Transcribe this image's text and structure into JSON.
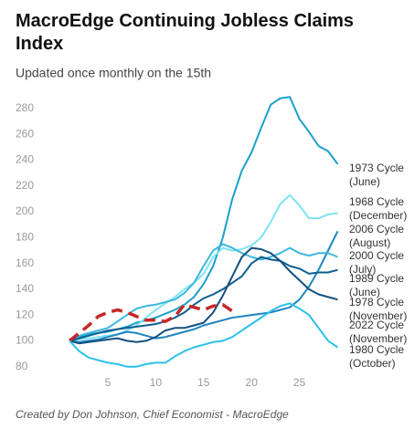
{
  "chart_data": {
    "type": "line",
    "title": "MacroEdge Continuing Jobless Claims Index",
    "subtitle": "Updated once monthly on the 15th",
    "footer": "Created by Don Johnson, Chief Economist - MacroEdge",
    "x": [
      1,
      2,
      3,
      4,
      5,
      6,
      7,
      8,
      9,
      10,
      11,
      12,
      13,
      14,
      15,
      16,
      17,
      18,
      19,
      20,
      21,
      22,
      23,
      24,
      25,
      26,
      27,
      28,
      29
    ],
    "xlim": [
      0,
      30
    ],
    "xticks": [
      5,
      10,
      15,
      20,
      25
    ],
    "ylim": [
      72,
      292
    ],
    "yticks": [
      80,
      100,
      120,
      140,
      160,
      180,
      200,
      220,
      240,
      260,
      280
    ],
    "grid": false,
    "series": [
      {
        "name": "1973 Cycle (June)",
        "color": "#1aa0cc",
        "values": [
          100,
          103,
          105,
          106,
          107,
          109,
          111,
          114,
          116,
          118,
          121,
          124,
          128,
          134,
          144,
          158,
          180,
          210,
          232,
          246,
          265,
          283,
          288,
          289,
          272,
          262,
          251,
          247,
          237
        ]
      },
      {
        "name": "1968 Cycle (December)",
        "color": "#7fe3f2",
        "values": [
          100,
          101,
          102,
          103,
          104,
          105,
          108,
          112,
          118,
          124,
          129,
          134,
          140,
          145,
          152,
          165,
          172,
          170,
          171,
          174,
          180,
          192,
          206,
          213,
          205,
          195,
          195,
          198,
          199
        ]
      },
      {
        "name": "2006 Cycle (August)",
        "color": "#1f86c0",
        "values": [
          100,
          99,
          100,
          101,
          103,
          105,
          107,
          106,
          104,
          102,
          103,
          105,
          107,
          109,
          112,
          114,
          116,
          118,
          119,
          120,
          121,
          122,
          124,
          126,
          132,
          142,
          155,
          170,
          185
        ]
      },
      {
        "name": "2000 Cycle (July)",
        "color": "#3bb7df",
        "values": [
          100,
          104,
          106,
          108,
          110,
          115,
          120,
          125,
          127,
          128,
          130,
          132,
          137,
          145,
          158,
          170,
          175,
          172,
          168,
          165,
          163,
          165,
          168,
          172,
          168,
          166,
          168,
          168,
          165
        ]
      },
      {
        "name": "1989 Cycle (June)",
        "color": "#0f5f8f",
        "values": [
          100,
          102,
          104,
          106,
          108,
          109,
          110,
          111,
          112,
          113,
          115,
          118,
          122,
          128,
          133,
          136,
          140,
          145,
          150,
          160,
          165,
          163,
          162,
          158,
          156,
          152,
          153,
          153,
          155
        ]
      },
      {
        "name": "1978 Cycle (November)",
        "color": "#14507f",
        "values": [
          100,
          98,
          99,
          100,
          101,
          102,
          100,
          99,
          100,
          103,
          108,
          110,
          110,
          112,
          114,
          122,
          135,
          150,
          165,
          172,
          171,
          168,
          162,
          154,
          147,
          140,
          136,
          134,
          132
        ]
      },
      {
        "name": "2022 Cycle (November)",
        "color": "#c62828",
        "dashed": true,
        "values": [
          100,
          106,
          112,
          119,
          122,
          124,
          122,
          119,
          116,
          116,
          115,
          119,
          128,
          126,
          124,
          127,
          128,
          123,
          null,
          null,
          null,
          null,
          null,
          null,
          null,
          null,
          null,
          null,
          null
        ]
      },
      {
        "name": "1980 Cycle (October)",
        "color": "#2ec0ea",
        "values": [
          100,
          92,
          87,
          85,
          83,
          82,
          80,
          80,
          82,
          83,
          83,
          88,
          92,
          95,
          97,
          99,
          100,
          103,
          108,
          113,
          118,
          123,
          127,
          129,
          125,
          120,
          110,
          100,
          95
        ]
      }
    ]
  }
}
